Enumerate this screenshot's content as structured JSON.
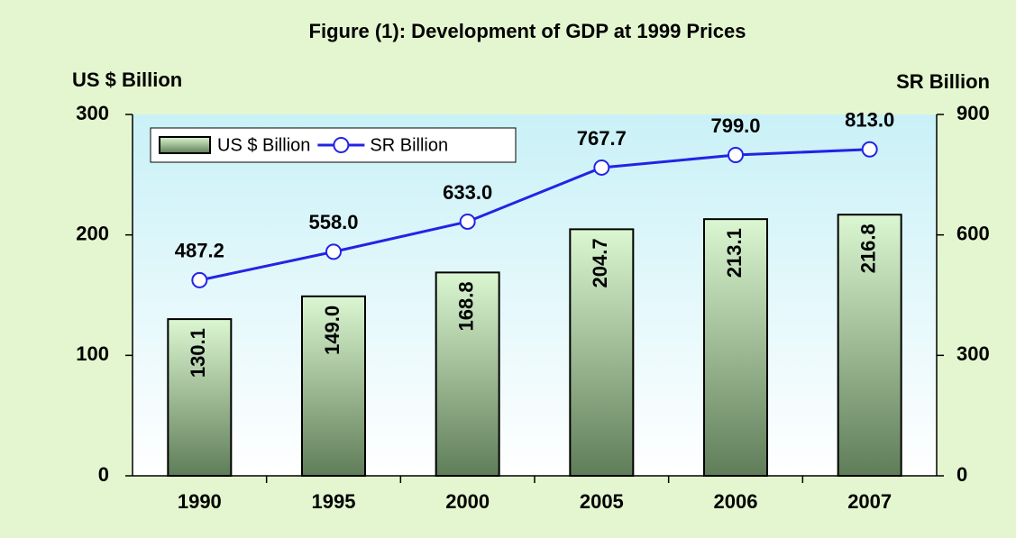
{
  "chart_data": {
    "type": "bar",
    "title": "Figure (1): Development of GDP at 1999 Prices",
    "y_label": "US $ Billion",
    "y2_label": "SR Billion",
    "categories": [
      "1990",
      "1995",
      "2000",
      "2005",
      "2006",
      "2007"
    ],
    "series": [
      {
        "name": "US $ Billion",
        "type": "bar",
        "color": "#5f7d58",
        "values": [
          130.1,
          149.0,
          168.8,
          204.7,
          213.1,
          216.8
        ],
        "value_labels": [
          "130.1",
          "149.0",
          "168.8",
          "204.7",
          "213.1",
          "216.8"
        ]
      },
      {
        "name": "SR Billion",
        "type": "line",
        "axis": "y2",
        "color": "#2323e6",
        "values": [
          487.2,
          558.0,
          633.0,
          767.7,
          799.0,
          813.0
        ],
        "value_labels": [
          "487.2",
          "558.0",
          "633.0",
          "767.7",
          "799.0",
          "813.0"
        ]
      }
    ],
    "ylim": [
      0,
      300
    ],
    "yticks": [
      0,
      100,
      200,
      300
    ],
    "y2lim": [
      0,
      900
    ],
    "y2ticks": [
      0,
      300,
      600,
      900
    ],
    "grid": false,
    "legend": "upper left"
  }
}
